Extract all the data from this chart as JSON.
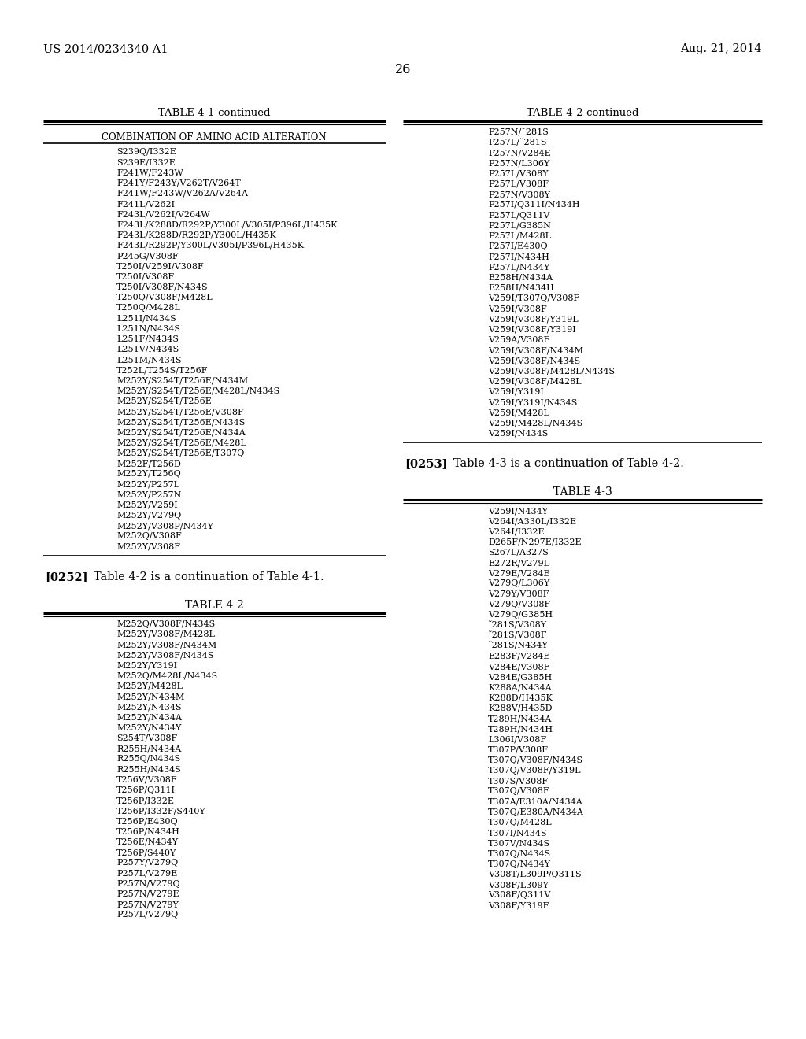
{
  "header_left": "US 2014/0234340 A1",
  "header_right": "Aug. 21, 2014",
  "page_number": "26",
  "table1_title": "TABLE 4-1-continued",
  "table1_col_header": "COMBINATION OF AMINO ACID ALTERATION",
  "table1_data": [
    "S239Q/I332E",
    "S239E/I332E",
    "F241W/F243W",
    "F241Y/F243Y/V262T/V264T",
    "F241W/F243W/V262A/V264A",
    "F241L/V262I",
    "F243L/V262I/V264W",
    "F243L/K288D/R292P/Y300L/V305I/P396L/H435K",
    "F243L/K288D/R292P/Y300L/H435K",
    "F243L/R292P/Y300L/V305I/P396L/H435K",
    "P245G/V308F",
    "T250I/V259I/V308F",
    "T250I/V308F",
    "T250I/V308F/N434S",
    "T250Q/V308F/M428L",
    "T250Q/M428L",
    "L251I/N434S",
    "L251N/N434S",
    "L251F/N434S",
    "L251V/N434S",
    "L251M/N434S",
    "T252L/T254S/T256F",
    "M252Y/S254T/T256E/N434M",
    "M252Y/S254T/T256E/M428L/N434S",
    "M252Y/S254T/T256E",
    "M252Y/S254T/T256E/V308F",
    "M252Y/S254T/T256E/N434S",
    "M252Y/S254T/T256E/N434A",
    "M252Y/S254T/T256E/M428L",
    "M252Y/S254T/T256E/T307Q",
    "M252F/T256D",
    "M252Y/T256Q",
    "M252Y/P257L",
    "M252Y/P257N",
    "M252Y/V259I",
    "M252Y/V279Q",
    "M252Y/V308P/N434Y",
    "M252Q/V308F",
    "M252Y/V308F"
  ],
  "paragraph0252_bold": "[0252]",
  "paragraph0252_text": "   Table 4-2 is a continuation of Table 4-1.",
  "table2_title": "TABLE 4-2",
  "table2_data": [
    "M252Q/V308F/N434S",
    "M252Y/V308F/M428L",
    "M252Y/V308F/N434M",
    "M252Y/V308F/N434S",
    "M252Y/Y319I",
    "M252Q/M428L/N434S",
    "M252Y/M428L",
    "M252Y/N434M",
    "M252Y/N434S",
    "M252Y/N434A",
    "M252Y/N434Y",
    "S254T/V308F",
    "R255H/N434A",
    "R255Q/N434S",
    "R255H/N434S",
    "T256V/V308F",
    "T256P/Q311I",
    "T256P/I332E",
    "T256P/I332F/S440Y",
    "T256P/E430Q",
    "T256P/N434H",
    "T256E/N434Y",
    "T256P/S440Y",
    "P257Y/V279Q",
    "P257L/V279E",
    "P257N/V279Q",
    "P257N/V279E",
    "P257N/V279Y",
    "P257L/V279Q"
  ],
  "table2_cont_title": "TABLE 4-2-continued",
  "table2_right_data": [
    "P257N/˘281S",
    "P257L/˘281S",
    "P257N/V284E",
    "P257N/L306Y",
    "P257L/V308Y",
    "P257L/V308F",
    "P257N/V308Y",
    "P257I/Q311I/N434H",
    "P257L/Q311V",
    "P257L/G385N",
    "P257L/M428L",
    "P257I/E430Q",
    "P257I/N434H",
    "P257L/N434Y",
    "E258H/N434A",
    "E258H/N434H",
    "V259I/T307Q/V308F",
    "V259I/V308F",
    "V259I/V308F/Y319L",
    "V259I/V308F/Y319I",
    "V259A/V308F",
    "V259I/V308F/N434M",
    "V259I/V308F/N434S",
    "V259I/V308F/M428L/N434S",
    "V259I/V308F/M428L",
    "V259I/Y319I",
    "V259I/Y319I/N434S",
    "V259I/M428L",
    "V259I/M428L/N434S",
    "V259I/N434S"
  ],
  "paragraph0253_bold": "[0253]",
  "paragraph0253_text": "   Table 4-3 is a continuation of Table 4-2.",
  "table3_title": "TABLE 4-3",
  "table3_data": [
    "V259I/N434Y",
    "V264I/A330L/I332E",
    "V264I/I332E",
    "D265F/N297E/I332E",
    "S267L/A327S",
    "E272R/V279L",
    "V279E/V284E",
    "V279Q/L306Y",
    "V279Y/V308F",
    "V279Q/V308F",
    "V279Q/G385H",
    "˘281S/V308Y",
    "˘281S/V308F",
    "˘281S/N434Y",
    "E283F/V284E",
    "V284E/V308F",
    "V284E/G385H",
    "K288A/N434A",
    "K288D/H435K",
    "K288V/H435D",
    "T289H/N434A",
    "T289H/N434H",
    "L306I/V308F",
    "T307P/V308F",
    "T307Q/V308F/N434S",
    "T307Q/V308F/Y319L",
    "T307S/V308F",
    "T307Q/V308F",
    "T307A/E310A/N434A",
    "T307Q/E380A/N434A",
    "T307Q/M428L",
    "T307I/N434S",
    "T307V/N434S",
    "T307Q/N434S",
    "T307Q/N434Y",
    "V308T/L309P/Q311S",
    "V308F/L309Y",
    "V308F/Q311V",
    "V308F/Y319F"
  ],
  "background_color": "#ffffff",
  "lh": 13.2,
  "fs": 8.0,
  "fs_title": 9.5,
  "fs_header": 8.5,
  "fs_page": 10.5
}
